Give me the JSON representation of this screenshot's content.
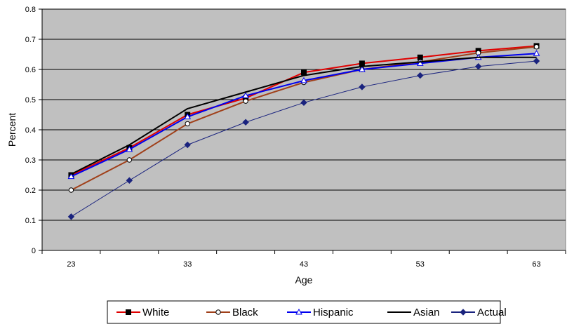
{
  "chart_data": {
    "type": "line",
    "title": "",
    "xlabel": "Age",
    "ylabel": "Percent",
    "x": [
      23,
      28,
      33,
      38,
      43,
      48,
      53,
      58,
      63
    ],
    "x_tick_labels": [
      "23",
      "33",
      "43",
      "53",
      "63"
    ],
    "x_ticks": [
      23,
      33,
      43,
      53,
      63
    ],
    "ylim": [
      0,
      0.8
    ],
    "y_ticks": [
      0,
      0.1,
      0.2,
      0.3,
      0.4,
      0.5,
      0.6,
      0.7,
      0.8
    ],
    "y_tick_labels": [
      "0",
      "0.1",
      "0.2",
      "0.3",
      "0.4",
      "0.5",
      "0.6",
      "0.7",
      "0.8"
    ],
    "grid": true,
    "plot_background": "#c0c0c0",
    "legend_position": "bottom",
    "series": [
      {
        "name": "White",
        "color": "#e00000",
        "marker": "square",
        "line_width": 2,
        "values": [
          0.25,
          0.34,
          0.45,
          0.505,
          0.59,
          0.62,
          0.64,
          0.662,
          0.678
        ]
      },
      {
        "name": "Black",
        "color": "#a0401a",
        "marker": "open-circle",
        "line_width": 2,
        "values": [
          0.2,
          0.3,
          0.42,
          0.495,
          0.557,
          0.6,
          0.625,
          0.655,
          0.675
        ]
      },
      {
        "name": "Hispanic",
        "color": "#0000ee",
        "marker": "open-triangle",
        "line_width": 2,
        "values": [
          0.245,
          0.335,
          0.443,
          0.513,
          0.563,
          0.6,
          0.62,
          0.64,
          0.653
        ]
      },
      {
        "name": "Asian",
        "color": "#000000",
        "marker": "none",
        "line_width": 2,
        "values": [
          0.253,
          0.35,
          0.47,
          0.525,
          0.58,
          0.61,
          0.625,
          0.64,
          0.64
        ]
      },
      {
        "name": "Actual",
        "color": "#1a237e",
        "marker": "diamond",
        "line_width": 1,
        "values": [
          0.112,
          0.232,
          0.35,
          0.425,
          0.49,
          0.542,
          0.58,
          0.61,
          0.628
        ]
      }
    ]
  }
}
